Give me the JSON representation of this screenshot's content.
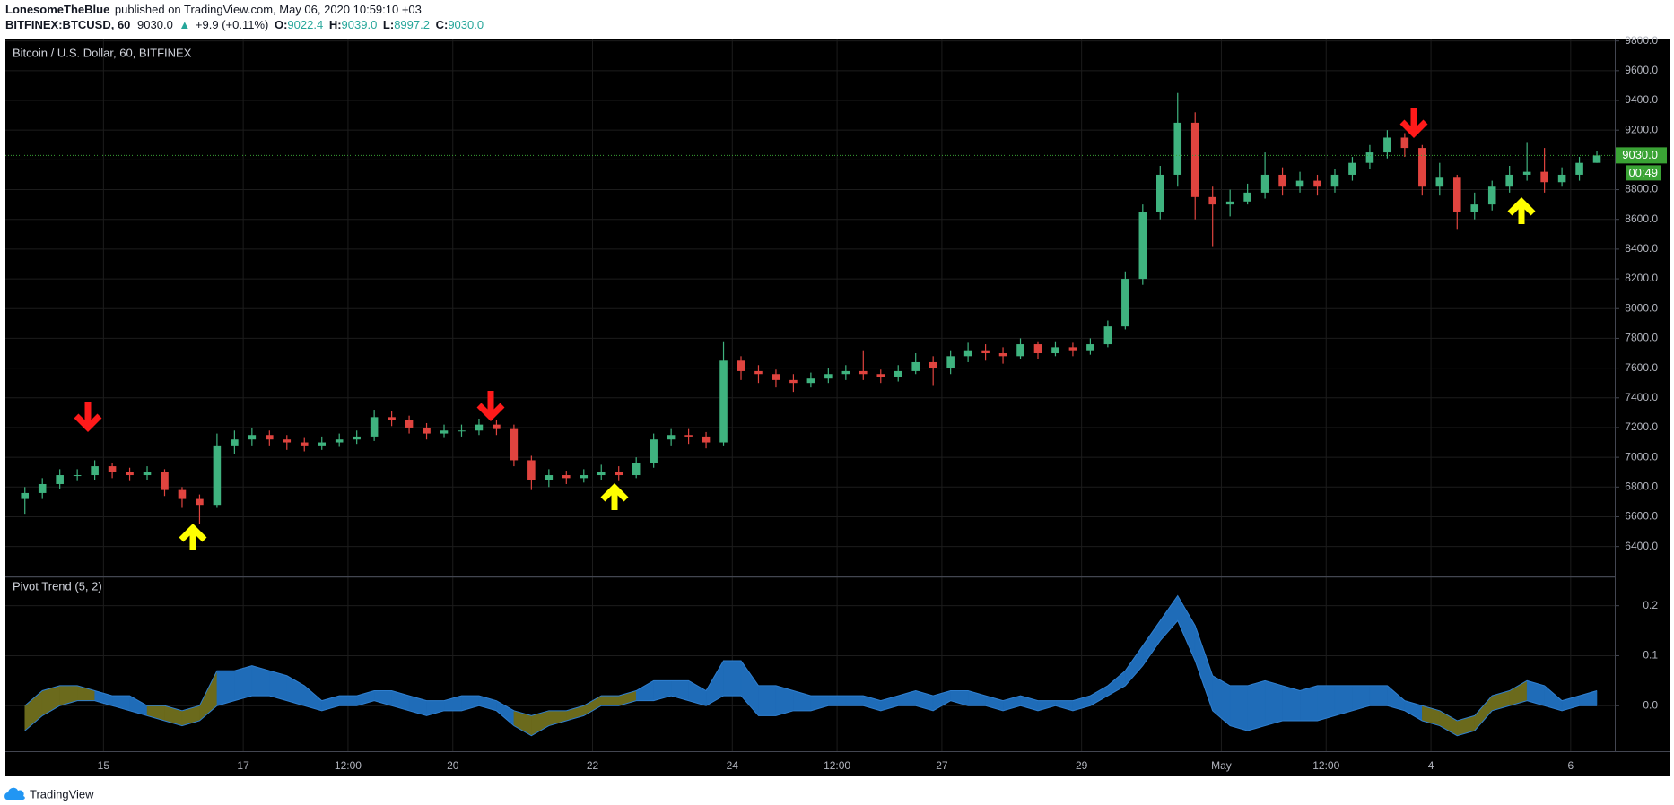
{
  "header": {
    "author": "LonesomeTheBlue",
    "published": "published on TradingView.com, May 06, 2020 10:59:10 +03",
    "symbol": "BITFINEX:BTCUSD, 60",
    "last": "9030.0",
    "change_arrow": "▲",
    "change": "+9.9 (+0.11%)",
    "open_label": "O:",
    "open": "9022.4",
    "high_label": "H:",
    "high": "9039.0",
    "low_label": "L:",
    "low": "8997.2",
    "close_label": "C:",
    "close": "9030.0"
  },
  "chart_data": [
    {
      "type": "candlestick",
      "title": "Bitcoin / U.S. Dollar, 60, BITFINEX",
      "categories": [
        null,
        null,
        null,
        null,
        null,
        "15",
        null,
        null,
        null,
        null,
        null,
        null,
        null,
        "17",
        null,
        null,
        null,
        null,
        null,
        "12:00",
        null,
        null,
        null,
        null,
        null,
        "20",
        null,
        null,
        null,
        null,
        null,
        null,
        null,
        "22",
        null,
        null,
        null,
        null,
        null,
        null,
        null,
        "24",
        null,
        null,
        null,
        null,
        null,
        "12:00",
        null,
        null,
        null,
        null,
        null,
        "27",
        null,
        null,
        null,
        null,
        null,
        null,
        null,
        "29",
        null,
        null,
        null,
        null,
        null,
        null,
        null,
        "May",
        null,
        null,
        null,
        null,
        null,
        "12:00",
        null,
        null,
        null,
        null,
        null,
        "4",
        null,
        null,
        null,
        null,
        null,
        null,
        null,
        "6",
        null
      ],
      "open": [
        6720,
        6760,
        6820,
        6880,
        6880,
        6940,
        6900,
        6880,
        6900,
        6780,
        6720,
        6680,
        7080,
        7120,
        7150,
        7120,
        7100,
        7080,
        7100,
        7120,
        7140,
        7270,
        7250,
        7200,
        7160,
        7180,
        7180,
        7220,
        7190,
        6980,
        6850,
        6880,
        6860,
        6880,
        6900,
        6880,
        6960,
        7120,
        7150,
        7140,
        7100,
        7650,
        7580,
        7560,
        7520,
        7500,
        7530,
        7560,
        7580,
        7560,
        7540,
        7580,
        7640,
        7600,
        7680,
        7720,
        7700,
        7680,
        7760,
        7700,
        7740,
        7720,
        7760,
        7880,
        8200,
        8650,
        8900,
        9250,
        8750,
        8700,
        8720,
        8780,
        8900,
        8820,
        8860,
        8820,
        8900,
        8980,
        9050,
        9150,
        9080,
        8820,
        8880,
        8650,
        8700,
        8820,
        8900,
        8920,
        8850,
        8900,
        8980
      ],
      "high": [
        6800,
        6860,
        6920,
        6920,
        6980,
        6960,
        6930,
        6940,
        6920,
        6800,
        6750,
        7160,
        7180,
        7200,
        7180,
        7150,
        7130,
        7140,
        7160,
        7180,
        7320,
        7310,
        7280,
        7230,
        7220,
        7220,
        7260,
        7250,
        7220,
        7010,
        6920,
        6910,
        6920,
        6950,
        6940,
        7000,
        7160,
        7190,
        7190,
        7170,
        7780,
        7680,
        7620,
        7590,
        7560,
        7570,
        7600,
        7620,
        7720,
        7590,
        7620,
        7700,
        7680,
        7720,
        7770,
        7760,
        7740,
        7800,
        7780,
        7780,
        7770,
        7800,
        7920,
        8250,
        8700,
        8960,
        9450,
        9320,
        8820,
        8800,
        8840,
        9050,
        8950,
        8920,
        8900,
        8940,
        9020,
        9100,
        9200,
        9180,
        9100,
        8980,
        8900,
        8780,
        8860,
        8960,
        9120,
        9080,
        8950,
        9020,
        9060
      ],
      "low": [
        6620,
        6720,
        6790,
        6840,
        6850,
        6860,
        6840,
        6850,
        6740,
        6660,
        6550,
        6660,
        7020,
        7080,
        7080,
        7050,
        7040,
        7050,
        7070,
        7090,
        7110,
        7210,
        7160,
        7120,
        7130,
        7140,
        7150,
        7150,
        6940,
        6780,
        6800,
        6820,
        6830,
        6850,
        6840,
        6860,
        6930,
        7080,
        7090,
        7060,
        7080,
        7520,
        7500,
        7470,
        7440,
        7470,
        7500,
        7520,
        7520,
        7500,
        7510,
        7560,
        7480,
        7560,
        7640,
        7650,
        7630,
        7660,
        7660,
        7680,
        7680,
        7690,
        7740,
        7860,
        8160,
        8600,
        8820,
        8600,
        8420,
        8620,
        8700,
        8740,
        8760,
        8780,
        8760,
        8780,
        8860,
        8940,
        9010,
        9020,
        8760,
        8760,
        8530,
        8600,
        8660,
        8780,
        8860,
        8780,
        8820,
        8860,
        8980
      ],
      "close": [
        6760,
        6820,
        6880,
        6880,
        6940,
        6900,
        6880,
        6900,
        6780,
        6720,
        6680,
        7080,
        7120,
        7150,
        7120,
        7100,
        7080,
        7100,
        7120,
        7140,
        7270,
        7250,
        7200,
        7160,
        7180,
        7180,
        7220,
        7190,
        6980,
        6850,
        6880,
        6860,
        6880,
        6900,
        6880,
        6960,
        7120,
        7150,
        7140,
        7100,
        7650,
        7580,
        7560,
        7520,
        7500,
        7530,
        7560,
        7580,
        7560,
        7540,
        7580,
        7640,
        7600,
        7680,
        7720,
        7700,
        7680,
        7760,
        7700,
        7740,
        7720,
        7760,
        7880,
        8200,
        8650,
        8900,
        9250,
        8750,
        8700,
        8720,
        8780,
        8900,
        8820,
        8860,
        8820,
        8900,
        8980,
        9050,
        9150,
        9080,
        8820,
        8880,
        8650,
        8700,
        8820,
        8900,
        8920,
        8850,
        8900,
        8980,
        9030
      ],
      "up_color": "#3fb37f",
      "down_color": "#e0443f",
      "ylim": [
        6205,
        9810
      ],
      "yticks": [
        {
          "value": 6400,
          "label": "6400.0"
        },
        {
          "value": 6600,
          "label": "6600.0"
        },
        {
          "value": 6800,
          "label": "6800.0"
        },
        {
          "value": 7000,
          "label": "7000.0"
        },
        {
          "value": 7200,
          "label": "7200.0"
        },
        {
          "value": 7400,
          "label": "7400.0"
        },
        {
          "value": 7600,
          "label": "7600.0"
        },
        {
          "value": 7800,
          "label": "7800.0"
        },
        {
          "value": 8000,
          "label": "8000.0"
        },
        {
          "value": 8200,
          "label": "8200.0"
        },
        {
          "value": 8400,
          "label": "8400.0"
        },
        {
          "value": 8600,
          "label": "8600.0"
        },
        {
          "value": 8800,
          "label": "8800.0"
        },
        {
          "value": 9000,
          "label": "9000.0"
        },
        {
          "value": 9200,
          "label": "9200.0"
        },
        {
          "value": 9400,
          "label": "9400.0"
        },
        {
          "value": 9600,
          "label": "9600.0"
        },
        {
          "value": 9800,
          "label": "9800.0"
        }
      ],
      "grid": true,
      "last_price": {
        "value": 9030,
        "label": "9030.0"
      },
      "last_price_color": "#3aa335",
      "countdown": "00:49"
    },
    {
      "type": "band",
      "title": "Pivot Trend (5, 2)",
      "series": [
        {
          "color": "#2f7fd0",
          "values": [
            0.0,
            0.03,
            0.04,
            0.04,
            0.03,
            0.02,
            0.02,
            0.0,
            0.0,
            -0.01,
            0.0,
            0.07,
            0.07,
            0.08,
            0.07,
            0.06,
            0.04,
            0.01,
            0.02,
            0.02,
            0.03,
            0.03,
            0.02,
            0.01,
            0.01,
            0.02,
            0.02,
            0.01,
            -0.01,
            -0.02,
            -0.01,
            -0.01,
            0.0,
            0.02,
            0.02,
            0.03,
            0.05,
            0.05,
            0.05,
            0.03,
            0.09,
            0.09,
            0.04,
            0.04,
            0.03,
            0.02,
            0.02,
            0.02,
            0.02,
            0.01,
            0.02,
            0.03,
            0.02,
            0.03,
            0.03,
            0.02,
            0.01,
            0.02,
            0.01,
            0.01,
            0.01,
            0.02,
            0.04,
            0.07,
            0.12,
            0.17,
            0.22,
            0.16,
            0.06,
            0.04,
            0.04,
            0.05,
            0.04,
            0.03,
            0.04,
            0.04,
            0.04,
            0.04,
            0.04,
            0.01,
            0.0,
            -0.01,
            -0.03,
            -0.02,
            0.02,
            0.03,
            0.05,
            0.04,
            0.01,
            0.02,
            0.03
          ]
        },
        {
          "color": "#2f7fd0",
          "values": [
            -0.05,
            -0.02,
            0.0,
            0.01,
            0.01,
            0.0,
            -0.01,
            -0.02,
            -0.03,
            -0.04,
            -0.03,
            0.0,
            0.01,
            0.02,
            0.02,
            0.01,
            0.0,
            -0.01,
            0.0,
            0.0,
            0.01,
            0.0,
            -0.01,
            -0.02,
            -0.01,
            -0.01,
            0.0,
            -0.01,
            -0.04,
            -0.06,
            -0.04,
            -0.03,
            -0.02,
            0.0,
            0.0,
            0.01,
            0.01,
            0.02,
            0.01,
            0.0,
            0.02,
            0.02,
            -0.02,
            -0.02,
            -0.01,
            -0.01,
            0.0,
            0.0,
            0.0,
            -0.01,
            0.0,
            0.0,
            -0.01,
            0.01,
            0.0,
            0.0,
            -0.01,
            0.0,
            -0.01,
            0.0,
            -0.01,
            0.0,
            0.02,
            0.04,
            0.08,
            0.13,
            0.17,
            0.09,
            -0.01,
            -0.04,
            -0.05,
            -0.04,
            -0.03,
            -0.03,
            -0.03,
            -0.02,
            -0.01,
            0.0,
            0.0,
            -0.01,
            -0.03,
            -0.04,
            -0.06,
            -0.05,
            -0.01,
            0.0,
            0.01,
            0.0,
            -0.01,
            0.0,
            0.0
          ]
        }
      ],
      "band_colors": [
        "#6b6a1c",
        "#6b6a1c",
        "#6b6a1c",
        "#6b6a1c",
        "#1f6cb8",
        "#1f6cb8",
        "#1f6cb8",
        "#6b6a1c",
        "#6b6a1c",
        "#6b6a1c",
        "#6b6a1c",
        "#1f6cb8",
        "#1f6cb8",
        "#1f6cb8",
        "#1f6cb8",
        "#1f6cb8",
        "#1f6cb8",
        "#1f6cb8",
        "#1f6cb8",
        "#1f6cb8",
        "#1f6cb8",
        "#1f6cb8",
        "#1f6cb8",
        "#1f6cb8",
        "#1f6cb8",
        "#1f6cb8",
        "#1f6cb8",
        "#1f6cb8",
        "#6b6a1c",
        "#6b6a1c",
        "#6b6a1c",
        "#6b6a1c",
        "#6b6a1c",
        "#6b6a1c",
        "#6b6a1c",
        "#1f6cb8",
        "#1f6cb8",
        "#1f6cb8",
        "#1f6cb8",
        "#1f6cb8",
        "#1f6cb8",
        "#1f6cb8",
        "#1f6cb8",
        "#1f6cb8",
        "#1f6cb8",
        "#1f6cb8",
        "#1f6cb8",
        "#1f6cb8",
        "#1f6cb8",
        "#1f6cb8",
        "#1f6cb8",
        "#1f6cb8",
        "#1f6cb8",
        "#1f6cb8",
        "#1f6cb8",
        "#1f6cb8",
        "#1f6cb8",
        "#1f6cb8",
        "#1f6cb8",
        "#1f6cb8",
        "#1f6cb8",
        "#1f6cb8",
        "#1f6cb8",
        "#1f6cb8",
        "#1f6cb8",
        "#1f6cb8",
        "#1f6cb8",
        "#1f6cb8",
        "#1f6cb8",
        "#1f6cb8",
        "#1f6cb8",
        "#1f6cb8",
        "#1f6cb8",
        "#1f6cb8",
        "#1f6cb8",
        "#1f6cb8",
        "#1f6cb8",
        "#1f6cb8",
        "#1f6cb8",
        "#1f6cb8",
        "#6b6a1c",
        "#6b6a1c",
        "#6b6a1c",
        "#6b6a1c",
        "#6b6a1c",
        "#6b6a1c",
        "#1f6cb8",
        "#1f6cb8",
        "#1f6cb8",
        "#1f6cb8",
        "#1f6cb8"
      ],
      "ylim": [
        -0.091,
        0.255
      ],
      "yticks": [
        0.2,
        0.1,
        {
          "value": 0,
          "label": "0.0"
        }
      ],
      "grid": true
    }
  ],
  "footer": {
    "brand": "TradingView"
  }
}
